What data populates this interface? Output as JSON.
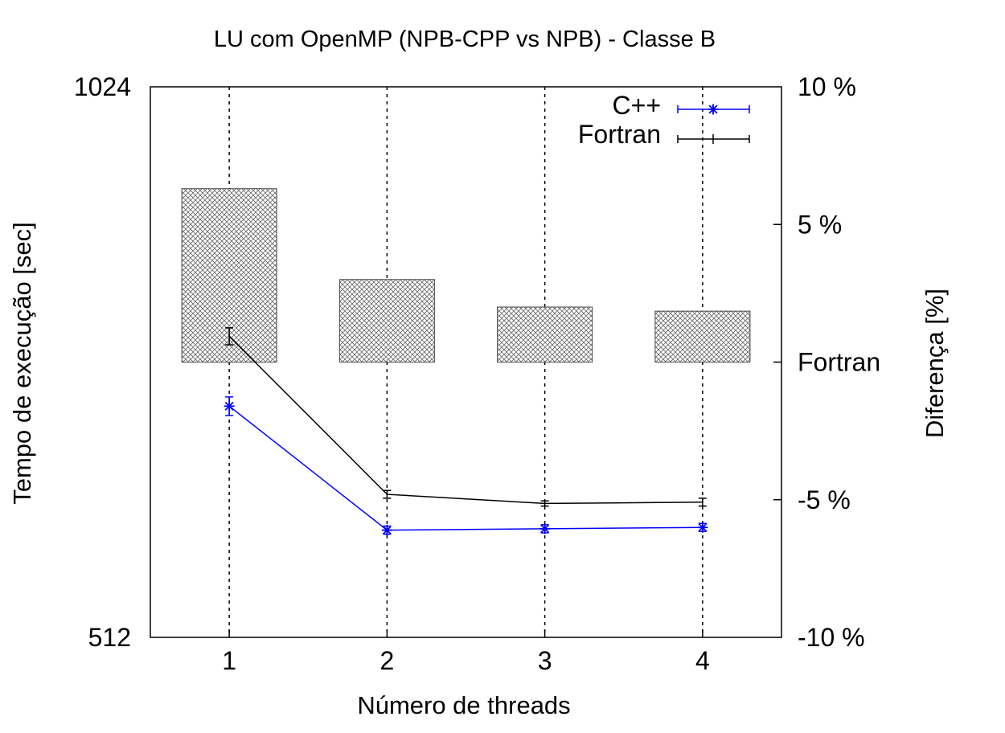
{
  "chart_data": {
    "type": "line",
    "title": "LU com OpenMP (NPB-CPP vs NPB) - Classe B",
    "xlabel": "Número de threads",
    "ylabel": "Tempo de execução [sec]",
    "y2label": "Diferença [%]",
    "x": [
      1,
      2,
      3,
      4
    ],
    "xticks": [
      "1",
      "2",
      "3",
      "4"
    ],
    "ylim": [
      512,
      1024
    ],
    "yscale": "log2",
    "yticks": [
      "1024",
      "512"
    ],
    "y2lim": [
      -10,
      10
    ],
    "y2ticks": [
      "10 %",
      "5 %",
      "Fortran",
      "-5 %",
      "-10 %"
    ],
    "grid": "vertical dashed at each x",
    "legend_position": "top-right",
    "series": [
      {
        "name": "C++",
        "color": "#0000ff",
        "marker": "star",
        "values": [
          685,
          586,
          587,
          588
        ],
        "error": [
          8,
          3,
          3,
          3
        ]
      },
      {
        "name": "Fortran",
        "color": "#000000",
        "marker": "none",
        "values": [
          748,
          613,
          606,
          607
        ],
        "error": [
          8,
          3,
          2,
          3
        ]
      }
    ],
    "bars": {
      "axis": "y2",
      "fill": "crosshatch",
      "values": [
        6.3,
        3.0,
        2.0,
        1.85
      ]
    }
  }
}
